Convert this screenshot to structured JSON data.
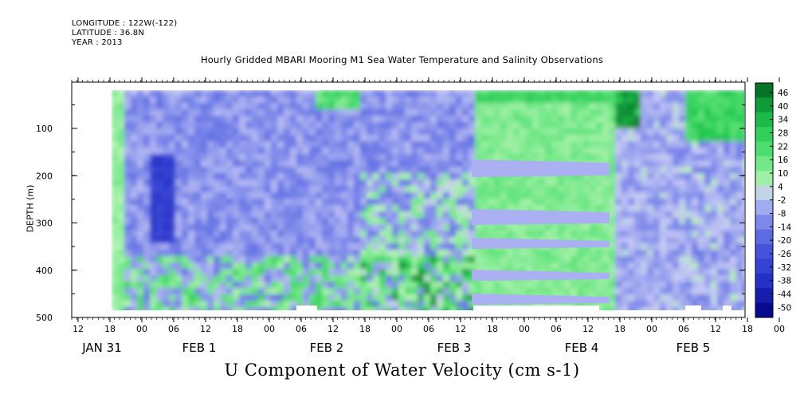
{
  "header": {
    "longitude": "LONGITUDE : 122W(-122)",
    "latitude": "LATITUDE : 36.8N",
    "year": "YEAR : 2013"
  },
  "chart_data": {
    "type": "heatmap",
    "title": "Hourly Gridded MBARI Mooring M1 Sea Water Temperature and Salinity Observations",
    "xlabel": "U Component of Water Velocity (cm s-1)",
    "ylabel": "DEPTH (m)",
    "ylim": [
      0,
      500
    ],
    "y_inverted": true,
    "y_ticks": [
      "100",
      "200",
      "300",
      "400",
      "500"
    ],
    "x_hour_ticks": [
      "12",
      "18",
      "00",
      "06",
      "12",
      "18",
      "00",
      "06",
      "12",
      "18",
      "00",
      "06",
      "12",
      "18",
      "00",
      "06",
      "12",
      "18",
      "00",
      "06",
      "12",
      "18",
      "00",
      "06",
      "12"
    ],
    "x_day_labels": [
      "JAN 31",
      "FEB  1",
      "FEB  2",
      "FEB  3",
      "FEB  4",
      "FEB  5"
    ],
    "colorbar": {
      "levels": [
        "46",
        "40",
        "34",
        "28",
        "22",
        "16",
        "10",
        "4",
        "-2",
        "-8",
        "-14",
        "-20",
        "-26",
        "-32",
        "-38",
        "-44",
        "-50"
      ],
      "low_color": "#00008a",
      "mid_color": "#b9bcf4",
      "high_color": "#005a1e"
    }
  }
}
